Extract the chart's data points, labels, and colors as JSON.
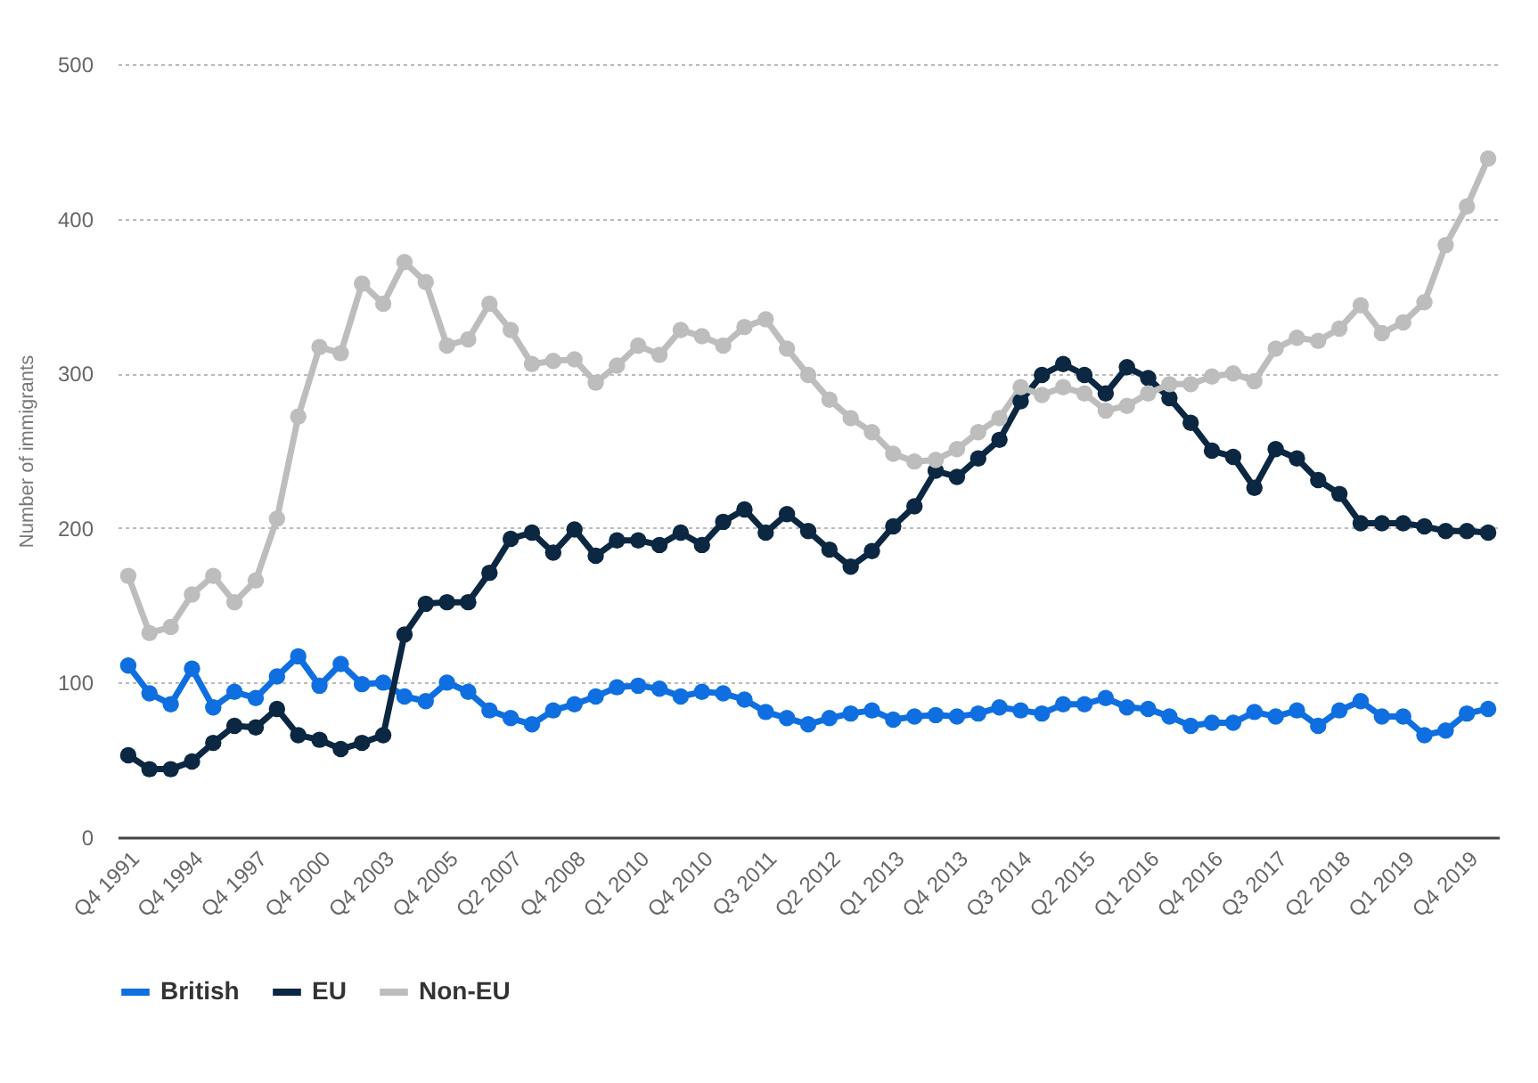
{
  "chart_data": {
    "type": "line",
    "ylabel": "Number of immigrants",
    "categories": [
      "Q4 1991",
      null,
      null,
      "Q4 1994",
      null,
      null,
      "Q4 1997",
      null,
      null,
      "Q4 2000",
      null,
      null,
      "Q4 2003",
      null,
      null,
      "Q4 2005",
      null,
      null,
      "Q2 2007",
      null,
      null,
      "Q4 2008",
      null,
      null,
      "Q1 2010",
      null,
      null,
      "Q4 2010",
      null,
      null,
      "Q3 2011",
      null,
      null,
      "Q2 2012",
      null,
      null,
      "Q1 2013",
      null,
      null,
      "Q4 2013",
      null,
      null,
      "Q3 2014",
      null,
      null,
      "Q2 2015",
      null,
      null,
      "Q1 2016",
      null,
      null,
      "Q4 2016",
      null,
      null,
      "Q3 2017",
      null,
      null,
      "Q2 2018",
      null,
      null,
      "Q1 2019",
      null,
      null,
      "Q4 2019",
      null
    ],
    "series": [
      {
        "name": "British",
        "color": "#0f6fe0",
        "values": [
          111,
          93,
          86,
          109,
          84,
          94,
          90,
          104,
          117,
          98,
          112,
          99,
          100,
          91,
          88,
          100,
          94,
          82,
          77,
          73,
          82,
          86,
          91,
          97,
          98,
          96,
          91,
          94,
          93,
          89,
          81,
          77,
          73,
          77,
          80,
          82,
          76,
          78,
          79,
          78,
          80,
          84,
          82,
          80,
          86,
          86,
          90,
          84,
          83,
          78,
          72,
          74,
          74,
          81,
          78,
          82,
          72,
          82,
          88,
          78,
          78,
          66,
          69,
          80,
          83
        ]
      },
      {
        "name": "EU",
        "color": "#0b2741",
        "values": [
          53,
          44,
          44,
          49,
          61,
          72,
          71,
          83,
          66,
          63,
          57,
          61,
          66,
          131,
          151,
          152,
          152,
          171,
          193,
          197,
          184,
          199,
          182,
          192,
          192,
          189,
          197,
          189,
          204,
          212,
          197,
          209,
          198,
          186,
          175,
          185,
          201,
          214,
          237,
          233,
          245,
          257,
          282,
          299,
          306,
          299,
          287,
          304,
          297,
          284,
          268,
          250,
          246,
          226,
          251,
          245,
          231,
          222,
          203,
          203,
          203,
          201,
          198,
          198,
          197
        ]
      },
      {
        "name": "Non-EU",
        "color": "#bdbdbd",
        "values": [
          169,
          132,
          136,
          157,
          169,
          152,
          166,
          206,
          272,
          317,
          313,
          358,
          345,
          372,
          359,
          318,
          322,
          345,
          328,
          306,
          308,
          309,
          294,
          305,
          318,
          312,
          328,
          324,
          318,
          330,
          335,
          316,
          299,
          283,
          271,
          262,
          248,
          243,
          244,
          251,
          262,
          271,
          291,
          286,
          291,
          287,
          276,
          279,
          287,
          293,
          293,
          298,
          300,
          295,
          316,
          323,
          321,
          329,
          344,
          326,
          333,
          346,
          383,
          408,
          439
        ]
      }
    ],
    "ylim": [
      0,
      500
    ],
    "yticks": [
      0,
      100,
      200,
      300,
      400,
      500
    ],
    "grid": "y",
    "legend": "bottom",
    "marker": "circle",
    "line_style": "solid"
  }
}
